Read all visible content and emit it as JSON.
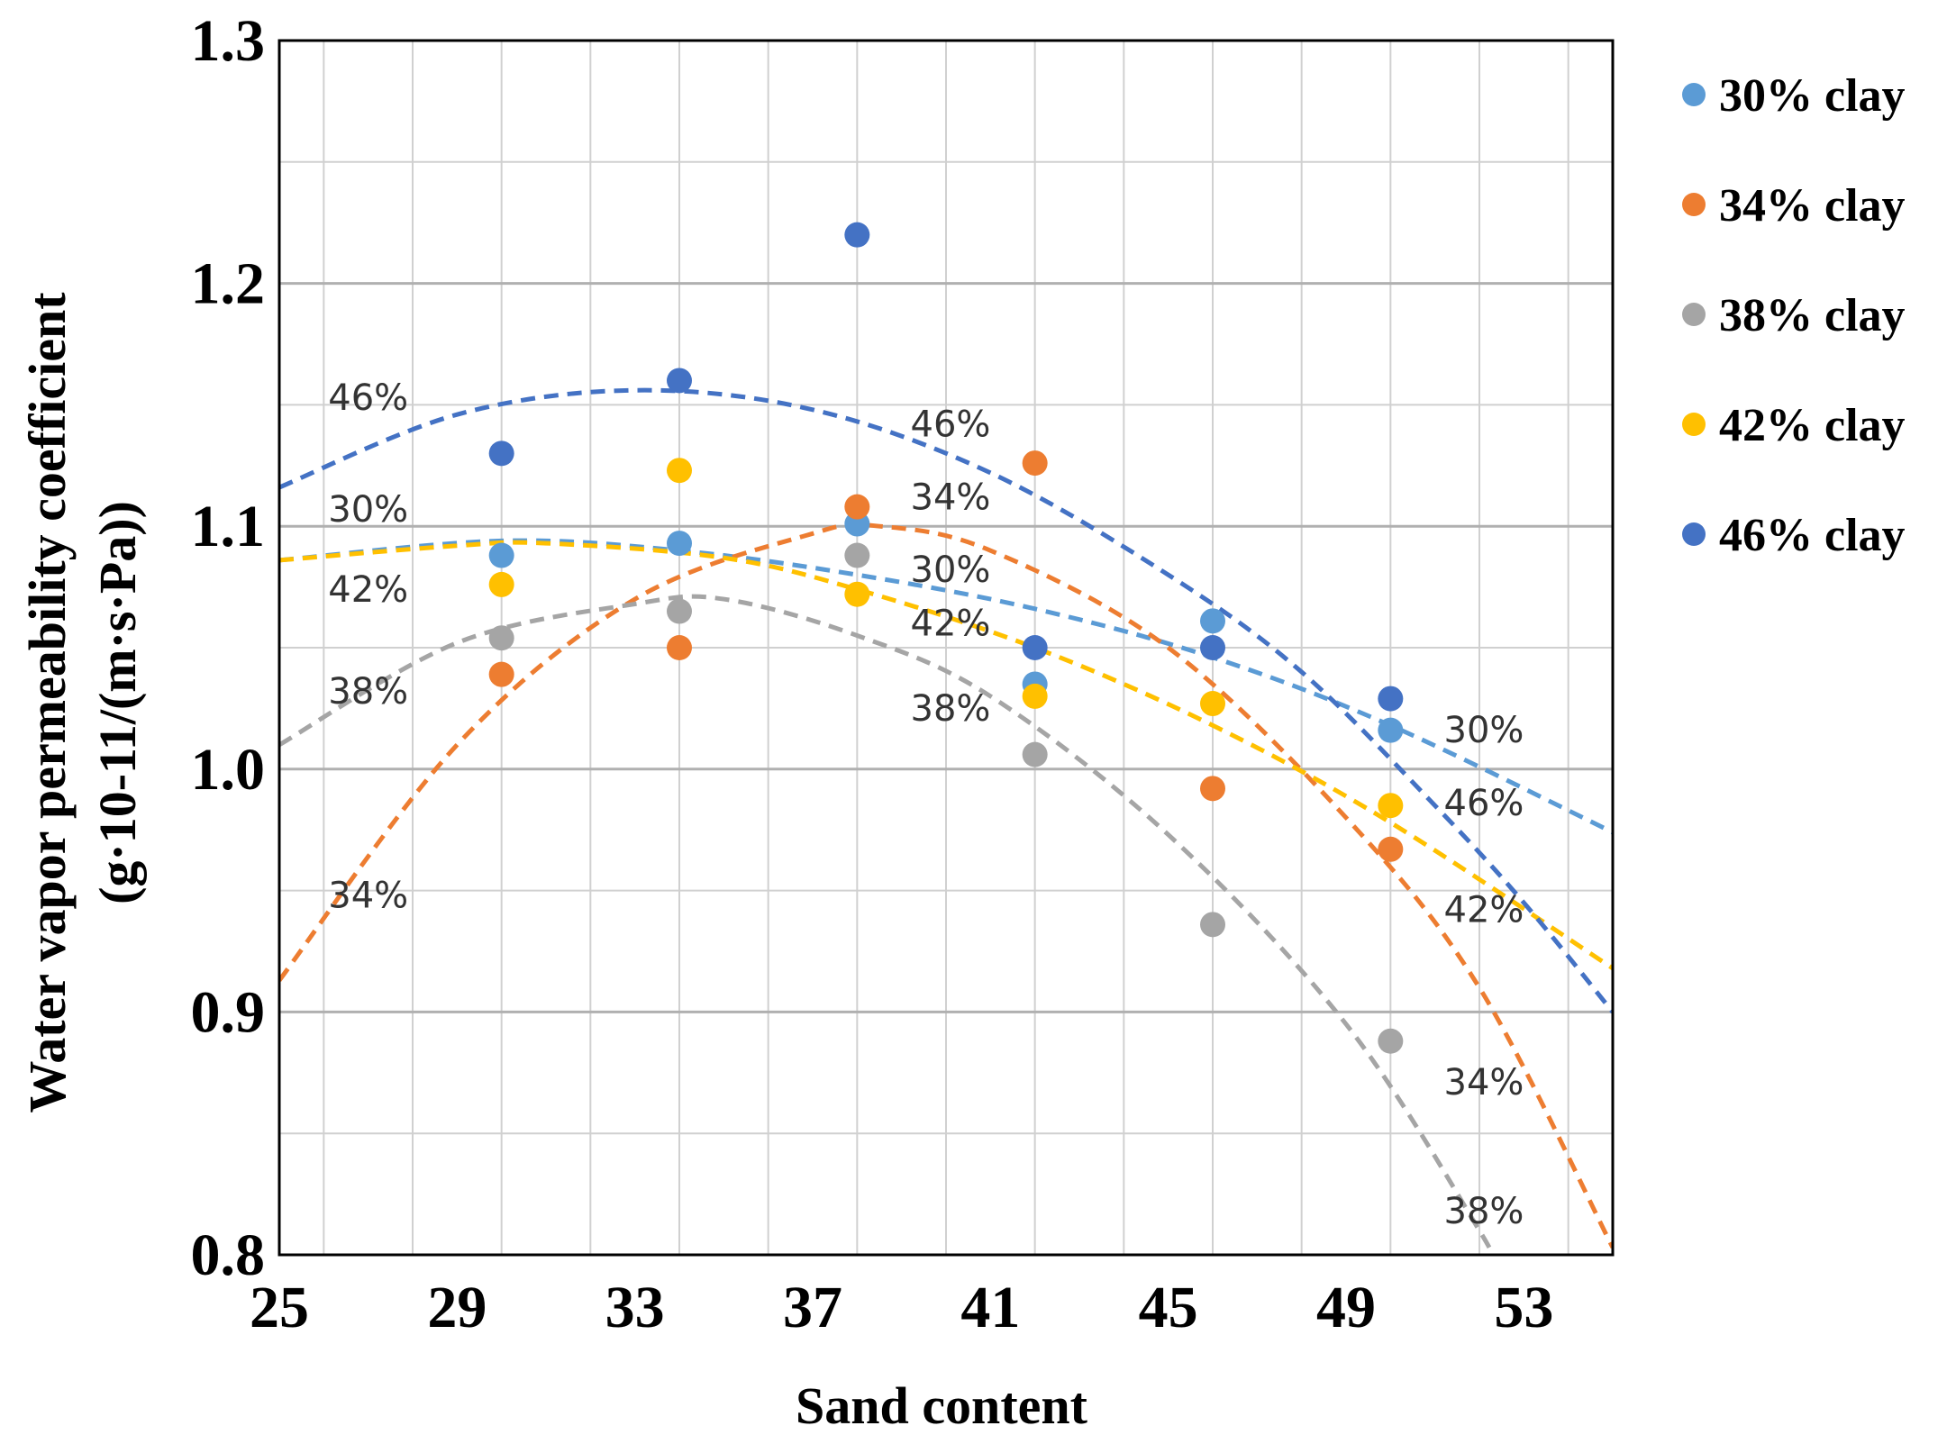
{
  "chart_data": {
    "type": "scatter",
    "title": "",
    "xlabel": "Sand content",
    "ylabel": "Water vapor permeability coefficient",
    "ylabel_line2": "(g·10-11/(m·s·Pa))",
    "xlim": [
      25,
      55
    ],
    "ylim": [
      0.8,
      1.3
    ],
    "x_ticks": [
      "25",
      "29",
      "33",
      "37",
      "41",
      "45",
      "49",
      "53"
    ],
    "y_ticks": [
      "0.8",
      "0.9",
      "1.0",
      "1.1",
      "1.2",
      "1.3"
    ],
    "grid": true,
    "legend_position": "right",
    "series": [
      {
        "name": "30% clay",
        "color": "#5B9BD5",
        "x": [
          30,
          34,
          38,
          42,
          46,
          50
        ],
        "y": [
          1.088,
          1.093,
          1.101,
          1.035,
          1.061,
          1.016
        ],
        "trend": [
          [
            25,
            1.086
          ],
          [
            30,
            1.094
          ],
          [
            34,
            1.09
          ],
          [
            38,
            1.08
          ],
          [
            42,
            1.066
          ],
          [
            46,
            1.046
          ],
          [
            50,
            1.018
          ],
          [
            55,
            0.974
          ]
        ]
      },
      {
        "name": "34% clay",
        "color": "#ED7D31",
        "x": [
          30,
          34,
          38,
          42,
          46,
          50
        ],
        "y": [
          1.039,
          1.05,
          1.108,
          1.126,
          0.992,
          0.967
        ],
        "trend": [
          [
            25,
            0.913
          ],
          [
            29,
            1.01
          ],
          [
            33,
            1.07
          ],
          [
            37,
            1.097
          ],
          [
            38.5,
            1.1
          ],
          [
            41,
            1.09
          ],
          [
            45,
            1.05
          ],
          [
            49,
            0.98
          ],
          [
            52,
            0.91
          ],
          [
            55,
            0.803
          ]
        ]
      },
      {
        "name": "38% clay",
        "color": "#A5A5A5",
        "x": [
          30,
          34,
          38,
          42,
          46,
          50
        ],
        "y": [
          1.054,
          1.065,
          1.088,
          1.006,
          0.936,
          0.888
        ],
        "trend": [
          [
            25,
            1.01
          ],
          [
            29,
            1.052
          ],
          [
            33,
            1.068
          ],
          [
            35,
            1.07
          ],
          [
            38,
            1.055
          ],
          [
            41,
            1.03
          ],
          [
            45,
            0.973
          ],
          [
            49,
            0.895
          ],
          [
            52,
            0.81
          ],
          [
            52.5,
            0.79
          ]
        ]
      },
      {
        "name": "42% clay",
        "color": "#FFC000",
        "x": [
          30,
          34,
          38,
          42,
          46,
          50
        ],
        "y": [
          1.076,
          1.123,
          1.072,
          1.03,
          1.027,
          0.985
        ],
        "trend": [
          [
            25,
            1.086
          ],
          [
            29,
            1.092
          ],
          [
            31,
            1.093
          ],
          [
            35,
            1.087
          ],
          [
            38,
            1.074
          ],
          [
            42,
            1.05
          ],
          [
            46,
            1.018
          ],
          [
            50,
            0.978
          ],
          [
            55,
            0.918
          ]
        ]
      },
      {
        "name": "46% clay",
        "color": "#4472C4",
        "x": [
          30,
          34,
          38,
          42,
          46,
          50
        ],
        "y": [
          1.13,
          1.16,
          1.22,
          1.05,
          1.05,
          1.029
        ],
        "trend": [
          [
            25,
            1.116
          ],
          [
            29,
            1.146
          ],
          [
            33,
            1.156
          ],
          [
            37,
            1.148
          ],
          [
            41,
            1.122
          ],
          [
            45,
            1.08
          ],
          [
            48,
            1.04
          ],
          [
            51,
            0.985
          ],
          [
            53,
            0.945
          ],
          [
            55,
            0.9
          ]
        ]
      }
    ],
    "annotations": [
      {
        "text": "46%",
        "x": 26.1,
        "y": 1.148
      },
      {
        "text": "30%",
        "x": 26.1,
        "y": 1.102
      },
      {
        "text": "42%",
        "x": 26.1,
        "y": 1.069
      },
      {
        "text": "38%",
        "x": 26.1,
        "y": 1.027
      },
      {
        "text": "34%",
        "x": 26.1,
        "y": 0.943
      },
      {
        "text": "46%",
        "x": 39.2,
        "y": 1.137
      },
      {
        "text": "34%",
        "x": 39.2,
        "y": 1.107
      },
      {
        "text": "30%",
        "x": 39.2,
        "y": 1.077
      },
      {
        "text": "42%",
        "x": 39.2,
        "y": 1.055
      },
      {
        "text": "38%",
        "x": 39.2,
        "y": 1.02
      },
      {
        "text": "30%",
        "x": 51.2,
        "y": 1.011
      },
      {
        "text": "46%",
        "x": 51.2,
        "y": 0.981
      },
      {
        "text": "42%",
        "x": 51.2,
        "y": 0.937
      },
      {
        "text": "34%",
        "x": 51.2,
        "y": 0.866
      },
      {
        "text": "38%",
        "x": 51.2,
        "y": 0.813
      }
    ]
  }
}
